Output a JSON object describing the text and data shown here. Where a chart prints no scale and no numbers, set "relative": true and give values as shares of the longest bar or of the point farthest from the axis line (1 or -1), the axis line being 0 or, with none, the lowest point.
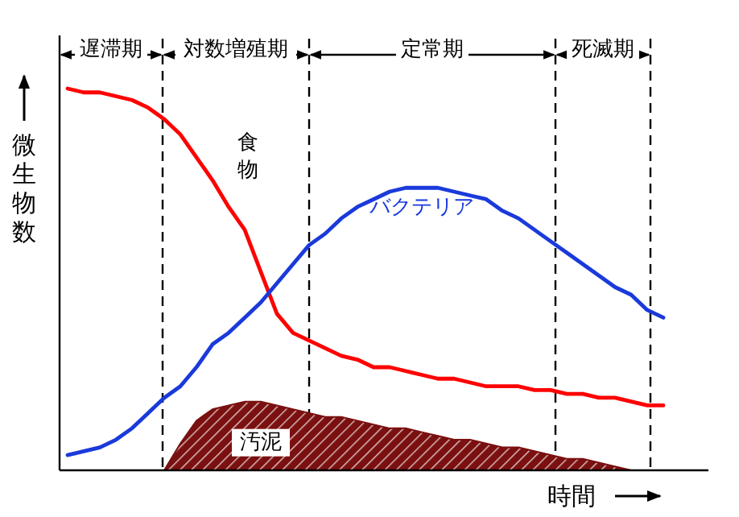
{
  "chart_data": {
    "type": "line",
    "relative": true,
    "xlabel": "時間",
    "ylabel": "微生物数",
    "categories": [
      null,
      null,
      null,
      null,
      null,
      null,
      null,
      null,
      null,
      null,
      null,
      null,
      null,
      null,
      null,
      null,
      null,
      null,
      null,
      null,
      null,
      null,
      null,
      null,
      null,
      null,
      null,
      null,
      null,
      null,
      null,
      null,
      null,
      null,
      null,
      null,
      null,
      null
    ],
    "series": [
      {
        "name": "食物",
        "color": "#ff0000",
        "values": [
          1.0,
          0.99,
          0.99,
          0.98,
          0.97,
          0.95,
          0.92,
          0.88,
          0.82,
          0.76,
          0.69,
          0.63,
          0.52,
          0.41,
          0.36,
          0.34,
          0.32,
          0.3,
          0.29,
          0.27,
          0.27,
          0.26,
          0.25,
          0.24,
          0.24,
          0.23,
          0.22,
          0.22,
          0.22,
          0.21,
          0.21,
          0.2,
          0.2,
          0.19,
          0.19,
          0.18,
          0.17,
          0.17
        ]
      },
      {
        "name": "バクテリア",
        "color": "#1a3adb",
        "values": [
          0.04,
          0.05,
          0.06,
          0.08,
          0.11,
          0.15,
          0.19,
          0.22,
          0.27,
          0.33,
          0.36,
          0.4,
          0.44,
          0.49,
          0.54,
          0.59,
          0.62,
          0.66,
          0.69,
          0.71,
          0.73,
          0.74,
          0.74,
          0.74,
          0.73,
          0.72,
          0.71,
          0.68,
          0.66,
          0.63,
          0.6,
          0.57,
          0.54,
          0.51,
          0.48,
          0.46,
          0.42,
          0.4
        ]
      },
      {
        "name": "汚泥",
        "type": "area",
        "color": "#7a1010",
        "values": [
          null,
          null,
          null,
          null,
          null,
          null,
          0,
          0.07,
          0.13,
          0.16,
          0.17,
          0.18,
          0.18,
          0.17,
          0.16,
          0.15,
          0.14,
          0.14,
          0.13,
          0.12,
          0.11,
          0.11,
          0.1,
          0.09,
          0.08,
          0.08,
          0.07,
          0.06,
          0.06,
          0.05,
          0.04,
          0.03,
          0.03,
          0.02,
          0.01,
          0,
          null,
          null
        ]
      }
    ],
    "annotations": [
      "遅滞期",
      "対数増殖期",
      "定常期",
      "死滅期"
    ]
  }
}
